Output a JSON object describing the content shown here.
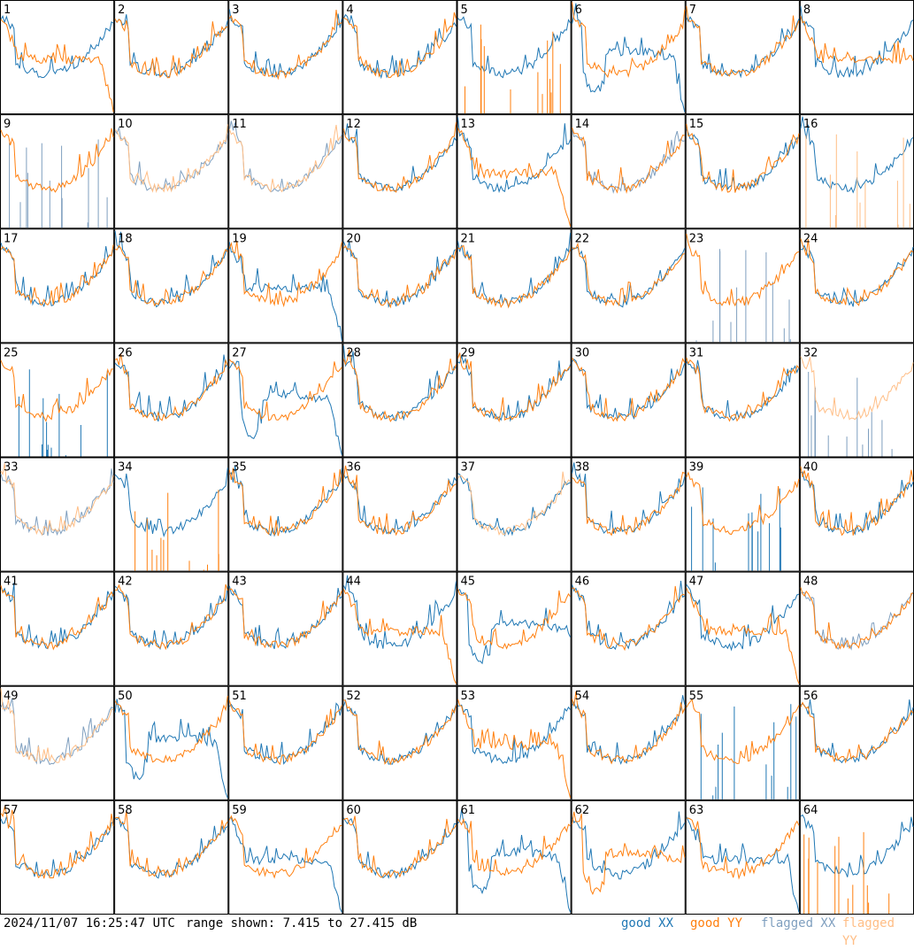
{
  "footer": {
    "timestamp": "2024/11/07 16:25:47 UTC",
    "range_text": "range shown: 7.415 to 27.415 dB"
  },
  "legend": [
    {
      "key": "good_xx",
      "label": "good XX",
      "color": "#1f77b4"
    },
    {
      "key": "good_yy",
      "label": "good YY",
      "color": "#ff7f0e"
    },
    {
      "key": "flagged_xx",
      "label": "flagged XX",
      "color": "#7f9fbf"
    },
    {
      "key": "flagged_yy",
      "label": "flagged YY",
      "color": "#ffbe86"
    }
  ],
  "chart_data": {
    "type": "line",
    "ylim_db": [
      7.415,
      27.415
    ],
    "x_points": 48,
    "panels": [
      {
        "id": "1",
        "xx": {
          "shape": "normal",
          "flag": false
        },
        "yy": {
          "shape": "flat_drop",
          "flag": false
        }
      },
      {
        "id": "2",
        "xx": {
          "shape": "normal",
          "flag": false
        },
        "yy": {
          "shape": "normal",
          "flag": false
        }
      },
      {
        "id": "3",
        "xx": {
          "shape": "normal",
          "flag": false
        },
        "yy": {
          "shape": "normal",
          "flag": false
        }
      },
      {
        "id": "4",
        "xx": {
          "shape": "normal",
          "flag": false
        },
        "yy": {
          "shape": "normal",
          "flag": false
        }
      },
      {
        "id": "5",
        "xx": {
          "shape": "normal",
          "flag": false
        },
        "yy": {
          "shape": "spikes",
          "flag": false
        }
      },
      {
        "id": "6",
        "xx": {
          "shape": "dip_drop",
          "flag": false
        },
        "yy": {
          "shape": "normal",
          "flag": false
        }
      },
      {
        "id": "7",
        "xx": {
          "shape": "normal",
          "flag": false
        },
        "yy": {
          "shape": "normal",
          "flag": false
        }
      },
      {
        "id": "8",
        "xx": {
          "shape": "normal",
          "flag": false
        },
        "yy": {
          "shape": "flat",
          "flag": false
        }
      },
      {
        "id": "9",
        "xx": {
          "shape": "spikes",
          "flag": true
        },
        "yy": {
          "shape": "normal",
          "flag": false
        }
      },
      {
        "id": "10",
        "xx": {
          "shape": "normal",
          "flag": true
        },
        "yy": {
          "shape": "normal",
          "flag": true
        }
      },
      {
        "id": "11",
        "xx": {
          "shape": "normal",
          "flag": true
        },
        "yy": {
          "shape": "normal",
          "flag": true
        }
      },
      {
        "id": "12",
        "xx": {
          "shape": "normal",
          "flag": false
        },
        "yy": {
          "shape": "normal",
          "flag": false
        }
      },
      {
        "id": "13",
        "xx": {
          "shape": "normal",
          "flag": false
        },
        "yy": {
          "shape": "flat_drop",
          "flag": false
        }
      },
      {
        "id": "14",
        "xx": {
          "shape": "normal",
          "flag": true
        },
        "yy": {
          "shape": "normal",
          "flag": false
        }
      },
      {
        "id": "15",
        "xx": {
          "shape": "normal",
          "flag": false
        },
        "yy": {
          "shape": "normal",
          "flag": false
        }
      },
      {
        "id": "16",
        "xx": {
          "shape": "normal",
          "flag": false
        },
        "yy": {
          "shape": "spikes",
          "flag": true
        }
      },
      {
        "id": "17",
        "xx": {
          "shape": "normal",
          "flag": false
        },
        "yy": {
          "shape": "normal",
          "flag": false
        }
      },
      {
        "id": "18",
        "xx": {
          "shape": "normal",
          "flag": false
        },
        "yy": {
          "shape": "normal",
          "flag": false
        }
      },
      {
        "id": "19",
        "xx": {
          "shape": "flat_drop",
          "flag": false
        },
        "yy": {
          "shape": "normal",
          "flag": false
        }
      },
      {
        "id": "20",
        "xx": {
          "shape": "normal",
          "flag": false
        },
        "yy": {
          "shape": "normal",
          "flag": false
        }
      },
      {
        "id": "21",
        "xx": {
          "shape": "normal",
          "flag": false
        },
        "yy": {
          "shape": "normal",
          "flag": false
        }
      },
      {
        "id": "22",
        "xx": {
          "shape": "normal",
          "flag": false
        },
        "yy": {
          "shape": "normal",
          "flag": false
        }
      },
      {
        "id": "23",
        "xx": {
          "shape": "spikes",
          "flag": true
        },
        "yy": {
          "shape": "normal",
          "flag": false
        }
      },
      {
        "id": "24",
        "xx": {
          "shape": "normal",
          "flag": false
        },
        "yy": {
          "shape": "normal",
          "flag": false
        }
      },
      {
        "id": "25",
        "xx": {
          "shape": "spikes",
          "flag": false
        },
        "yy": {
          "shape": "normal",
          "flag": false
        }
      },
      {
        "id": "26",
        "xx": {
          "shape": "normal",
          "flag": false
        },
        "yy": {
          "shape": "normal",
          "flag": false
        }
      },
      {
        "id": "27",
        "xx": {
          "shape": "dip_drop",
          "flag": false
        },
        "yy": {
          "shape": "normal",
          "flag": false
        }
      },
      {
        "id": "28",
        "xx": {
          "shape": "normal",
          "flag": false
        },
        "yy": {
          "shape": "normal",
          "flag": false
        }
      },
      {
        "id": "29",
        "xx": {
          "shape": "normal",
          "flag": false
        },
        "yy": {
          "shape": "normal",
          "flag": false
        }
      },
      {
        "id": "30",
        "xx": {
          "shape": "normal",
          "flag": false
        },
        "yy": {
          "shape": "normal",
          "flag": false
        }
      },
      {
        "id": "31",
        "xx": {
          "shape": "normal",
          "flag": false
        },
        "yy": {
          "shape": "normal",
          "flag": false
        }
      },
      {
        "id": "32",
        "xx": {
          "shape": "spikes",
          "flag": true
        },
        "yy": {
          "shape": "normal",
          "flag": true
        }
      },
      {
        "id": "33",
        "xx": {
          "shape": "normal",
          "flag": true
        },
        "yy": {
          "shape": "normal",
          "flag": true
        }
      },
      {
        "id": "34",
        "xx": {
          "shape": "normal",
          "flag": false
        },
        "yy": {
          "shape": "spikes",
          "flag": false
        }
      },
      {
        "id": "35",
        "xx": {
          "shape": "normal",
          "flag": false
        },
        "yy": {
          "shape": "normal",
          "flag": false
        }
      },
      {
        "id": "36",
        "xx": {
          "shape": "normal",
          "flag": false
        },
        "yy": {
          "shape": "normal",
          "flag": false
        }
      },
      {
        "id": "37",
        "xx": {
          "shape": "normal",
          "flag": false
        },
        "yy": {
          "shape": "normal",
          "flag": true
        }
      },
      {
        "id": "38",
        "xx": {
          "shape": "normal",
          "flag": false
        },
        "yy": {
          "shape": "normal",
          "flag": false
        }
      },
      {
        "id": "39",
        "xx": {
          "shape": "spikes",
          "flag": false
        },
        "yy": {
          "shape": "normal",
          "flag": false
        }
      },
      {
        "id": "40",
        "xx": {
          "shape": "normal",
          "flag": false
        },
        "yy": {
          "shape": "normal",
          "flag": false
        }
      },
      {
        "id": "41",
        "xx": {
          "shape": "normal",
          "flag": false
        },
        "yy": {
          "shape": "normal",
          "flag": false
        }
      },
      {
        "id": "42",
        "xx": {
          "shape": "normal",
          "flag": false
        },
        "yy": {
          "shape": "normal",
          "flag": false
        }
      },
      {
        "id": "43",
        "xx": {
          "shape": "normal",
          "flag": false
        },
        "yy": {
          "shape": "normal",
          "flag": false
        }
      },
      {
        "id": "44",
        "xx": {
          "shape": "normal",
          "flag": false
        },
        "yy": {
          "shape": "flat_drop",
          "flag": false
        }
      },
      {
        "id": "45",
        "xx": {
          "shape": "dip",
          "flag": false
        },
        "yy": {
          "shape": "normal",
          "flag": false
        }
      },
      {
        "id": "46",
        "xx": {
          "shape": "normal",
          "flag": false
        },
        "yy": {
          "shape": "normal",
          "flag": false
        }
      },
      {
        "id": "47",
        "xx": {
          "shape": "normal",
          "flag": false
        },
        "yy": {
          "shape": "flat_drop",
          "flag": false
        }
      },
      {
        "id": "48",
        "xx": {
          "shape": "normal",
          "flag": true
        },
        "yy": {
          "shape": "normal",
          "flag": false
        }
      },
      {
        "id": "49",
        "xx": {
          "shape": "normal",
          "flag": true
        },
        "yy": {
          "shape": "normal",
          "flag": true
        }
      },
      {
        "id": "50",
        "xx": {
          "shape": "dip_drop",
          "flag": false
        },
        "yy": {
          "shape": "normal",
          "flag": false
        }
      },
      {
        "id": "51",
        "xx": {
          "shape": "normal",
          "flag": false
        },
        "yy": {
          "shape": "normal",
          "flag": false
        }
      },
      {
        "id": "52",
        "xx": {
          "shape": "normal",
          "flag": false
        },
        "yy": {
          "shape": "normal",
          "flag": false
        }
      },
      {
        "id": "53",
        "xx": {
          "shape": "normal",
          "flag": false
        },
        "yy": {
          "shape": "flat_drop",
          "flag": false
        }
      },
      {
        "id": "54",
        "xx": {
          "shape": "normal",
          "flag": false
        },
        "yy": {
          "shape": "normal",
          "flag": false
        }
      },
      {
        "id": "55",
        "xx": {
          "shape": "spikes",
          "flag": false
        },
        "yy": {
          "shape": "normal",
          "flag": false
        }
      },
      {
        "id": "56",
        "xx": {
          "shape": "normal",
          "flag": false
        },
        "yy": {
          "shape": "normal",
          "flag": false
        }
      },
      {
        "id": "57",
        "xx": {
          "shape": "normal",
          "flag": false
        },
        "yy": {
          "shape": "normal",
          "flag": false
        }
      },
      {
        "id": "58",
        "xx": {
          "shape": "normal",
          "flag": false
        },
        "yy": {
          "shape": "normal",
          "flag": false
        }
      },
      {
        "id": "59",
        "xx": {
          "shape": "flat_drop",
          "flag": false
        },
        "yy": {
          "shape": "normal",
          "flag": false
        }
      },
      {
        "id": "60",
        "xx": {
          "shape": "normal",
          "flag": false
        },
        "yy": {
          "shape": "normal",
          "flag": false
        }
      },
      {
        "id": "61",
        "xx": {
          "shape": "dip_drop",
          "flag": false
        },
        "yy": {
          "shape": "normal",
          "flag": false
        }
      },
      {
        "id": "62",
        "xx": {
          "shape": "normal",
          "flag": false
        },
        "yy": {
          "shape": "dip",
          "flag": false
        }
      },
      {
        "id": "63",
        "xx": {
          "shape": "flat_drop",
          "flag": false
        },
        "yy": {
          "shape": "normal",
          "flag": false
        }
      },
      {
        "id": "64",
        "xx": {
          "shape": "normal",
          "flag": false
        },
        "yy": {
          "shape": "spikes",
          "flag": false
        }
      }
    ]
  }
}
